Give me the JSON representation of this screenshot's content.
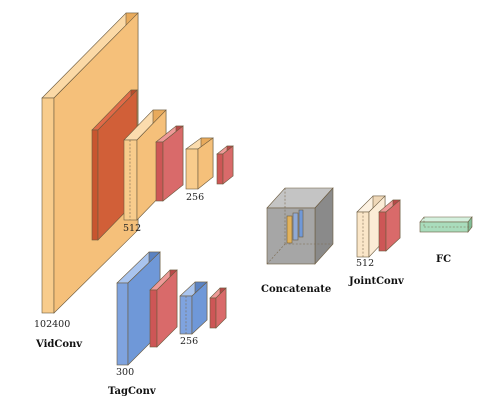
{
  "colors": {
    "conv": "#f5c07a",
    "relu_red": "#d9453a",
    "pool_red": "#d96a6a",
    "tag_blue": "#6f98d8",
    "concat_gray": "#9a9a9a",
    "joint": "#fae6c8",
    "fc_green": "#a9dcbc"
  },
  "vid_branch": {
    "label": "VidConv",
    "dims": {
      "first": "102400",
      "second": "512",
      "third": "256"
    }
  },
  "tag_branch": {
    "label": "TagConv",
    "dims": {
      "first": "300",
      "second": "256"
    }
  },
  "concat": {
    "label": "Concatenate"
  },
  "joint": {
    "label": "JointConv",
    "dim": "512"
  },
  "fc": {
    "label": "FC"
  }
}
